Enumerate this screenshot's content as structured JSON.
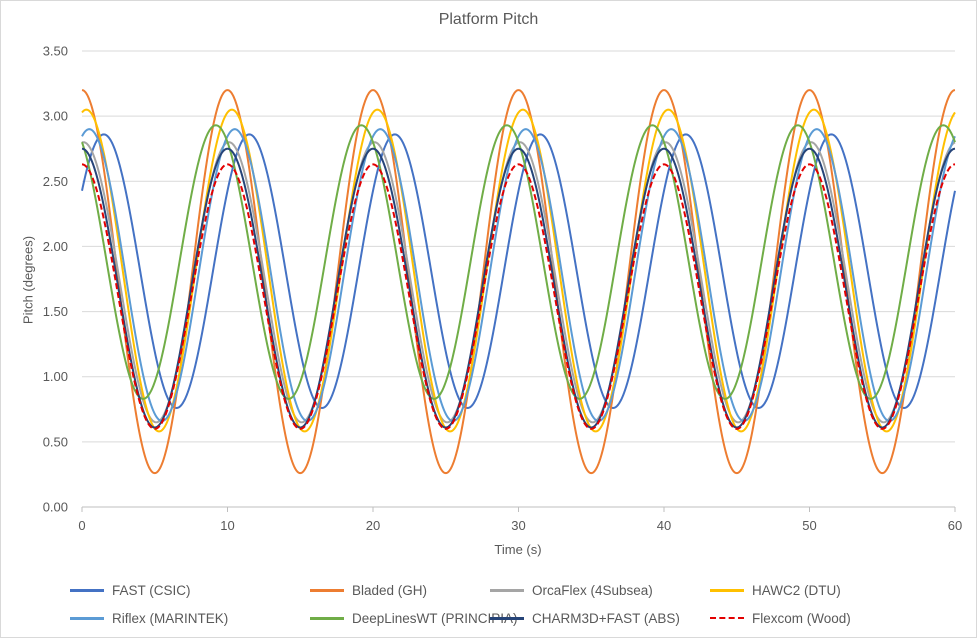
{
  "chart_data": {
    "type": "line",
    "title": "Platform Pitch",
    "xlabel": "Time (s)",
    "ylabel": "Pitch (degrees)",
    "xlim": [
      0,
      60
    ],
    "ylim": [
      0,
      3.5
    ],
    "x_ticks": [
      "0",
      "10",
      "20",
      "30",
      "40",
      "50",
      "60"
    ],
    "y_ticks": [
      "0.00",
      "0.50",
      "1.00",
      "1.50",
      "2.00",
      "2.50",
      "3.00",
      "3.50"
    ],
    "grid": "horizontal",
    "legend_position": "bottom",
    "period_s": 10,
    "series": [
      {
        "name": "FAST (CSIC)",
        "color": "#4472c4",
        "dash": false,
        "min": 0.76,
        "max": 2.86,
        "peak_time_s": 1.5,
        "start_value": 2.44
      },
      {
        "name": "Bladed (GH)",
        "color": "#ed7d31",
        "dash": false,
        "min": 0.26,
        "max": 3.2,
        "peak_time_s": 0.0,
        "start_value": 3.2
      },
      {
        "name": "OrcaFlex (4Subsea)",
        "color": "#a5a5a5",
        "dash": false,
        "min": 0.65,
        "max": 2.8,
        "peak_time_s": 0.1,
        "start_value": 2.78
      },
      {
        "name": "HAWC2 (DTU)",
        "color": "#ffc000",
        "dash": false,
        "min": 0.58,
        "max": 3.05,
        "peak_time_s": 0.3,
        "start_value": 3.04
      },
      {
        "name": "Riflex (MARINTEK)",
        "color": "#5b9bd5",
        "dash": false,
        "min": 0.66,
        "max": 2.9,
        "peak_time_s": 0.5,
        "start_value": 2.88
      },
      {
        "name": "DeepLinesWT (PRINCIPIA)",
        "color": "#70ad47",
        "dash": false,
        "min": 0.83,
        "max": 2.93,
        "peak_time_s": 9.2,
        "start_value": 2.91
      },
      {
        "name": "CHARM3D+FAST (ABS)",
        "color": "#264478",
        "dash": false,
        "min": 0.61,
        "max": 2.75,
        "peak_time_s": 0.0,
        "start_value": 2.73
      },
      {
        "name": "Flexcom (Wood)",
        "color": "#e30000",
        "dash": true,
        "min": 0.6,
        "max": 2.63,
        "peak_time_s": 0.0,
        "start_value": 2.62
      }
    ]
  }
}
